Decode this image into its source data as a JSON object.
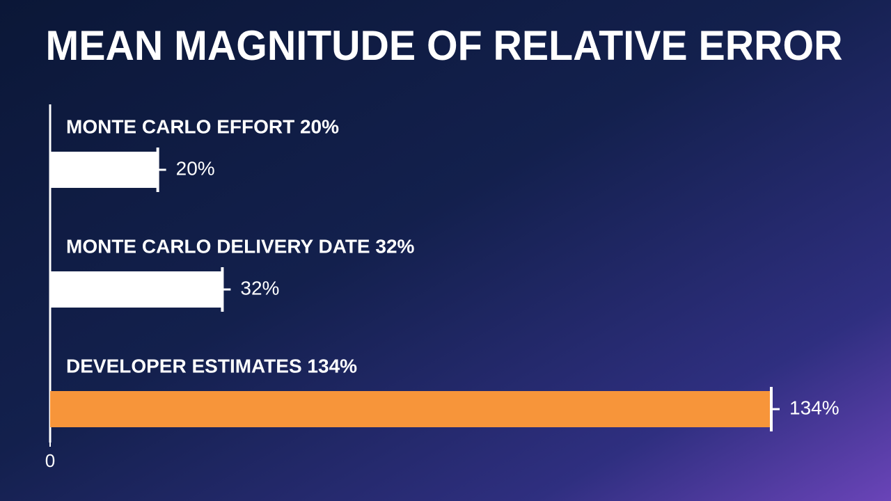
{
  "chart_data": {
    "type": "hbar",
    "title": "MEAN MAGNITUDE OF RELATIVE ERROR",
    "categories": [
      "MONTE CARLO EFFORT 20%",
      "MONTE CARLO DELIVERY DATE 32%",
      "DEVELOPER ESTIMATES 134%"
    ],
    "values": [
      20,
      32,
      134
    ],
    "value_labels": [
      "20%",
      "32%",
      "134%"
    ],
    "colors": [
      "#ffffff",
      "#ffffff",
      "#f7953a"
    ],
    "xlim": [
      0,
      134
    ],
    "xticks": [
      0
    ]
  }
}
